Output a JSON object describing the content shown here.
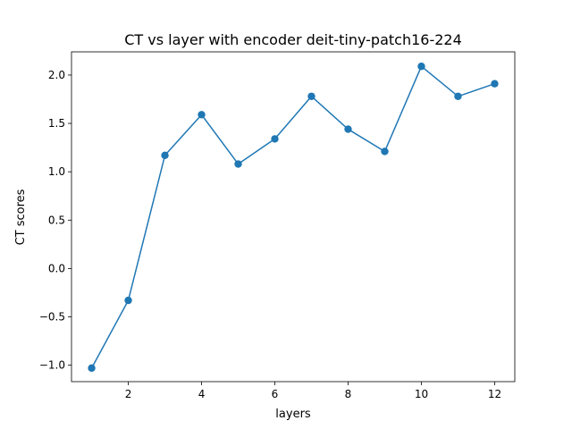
{
  "chart_data": {
    "type": "line",
    "title": "CT vs layer with encoder deit-tiny-patch16-224",
    "xlabel": "layers",
    "ylabel": "CT scores",
    "x": [
      1,
      2,
      3,
      4,
      5,
      6,
      7,
      8,
      9,
      10,
      11,
      12
    ],
    "series": [
      {
        "values": [
          -1.03,
          -0.33,
          1.17,
          1.59,
          1.08,
          1.34,
          1.78,
          1.44,
          1.21,
          2.09,
          1.78,
          1.91
        ],
        "color": "#1f77b4",
        "marker": "circle"
      }
    ],
    "xlim": [
      0.45,
      12.55
    ],
    "ylim": [
      -1.17,
      2.24
    ],
    "xticks": [
      2,
      4,
      6,
      8,
      10,
      12
    ],
    "xtick_labels": [
      "2",
      "4",
      "6",
      "8",
      "10",
      "12"
    ],
    "yticks": [
      -1.0,
      -0.5,
      0.0,
      0.5,
      1.0,
      1.5,
      2.0
    ],
    "ytick_labels": [
      "−1.0",
      "−0.5",
      "0.0",
      "0.5",
      "1.0",
      "1.5",
      "2.0"
    ],
    "grid": false,
    "legend": false
  }
}
